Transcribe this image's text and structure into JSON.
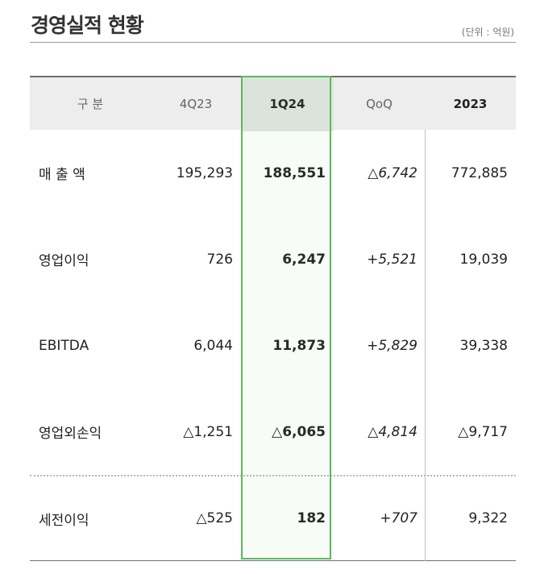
{
  "title": "경영실적 현황",
  "unit": "(단위 : 억원)",
  "colors": {
    "highlight_border": "#5cb85c",
    "header_bg": "#ecedec"
  },
  "columns": [
    "구 분",
    "4Q23",
    "1Q24",
    "QoQ",
    "2023"
  ],
  "rows": [
    {
      "label": "매 출 액",
      "q4_23": "195,293",
      "q1_24": "188,551",
      "qoq": "△6,742",
      "y2023": "772,885"
    },
    {
      "label": "영업이익",
      "q4_23": "726",
      "q1_24": "6,247",
      "qoq": "+5,521",
      "y2023": "19,039"
    },
    {
      "label": "EBITDA",
      "q4_23": "6,044",
      "q1_24": "11,873",
      "qoq": "+5,829",
      "y2023": "39,338"
    },
    {
      "label": "영업외손익",
      "q4_23": "△1,251",
      "q1_24": "△6,065",
      "qoq": "△4,814",
      "y2023": "△9,717"
    },
    {
      "label": "세전이익",
      "q4_23": "△525",
      "q1_24": "182",
      "qoq": "+707",
      "y2023": "9,322"
    }
  ]
}
